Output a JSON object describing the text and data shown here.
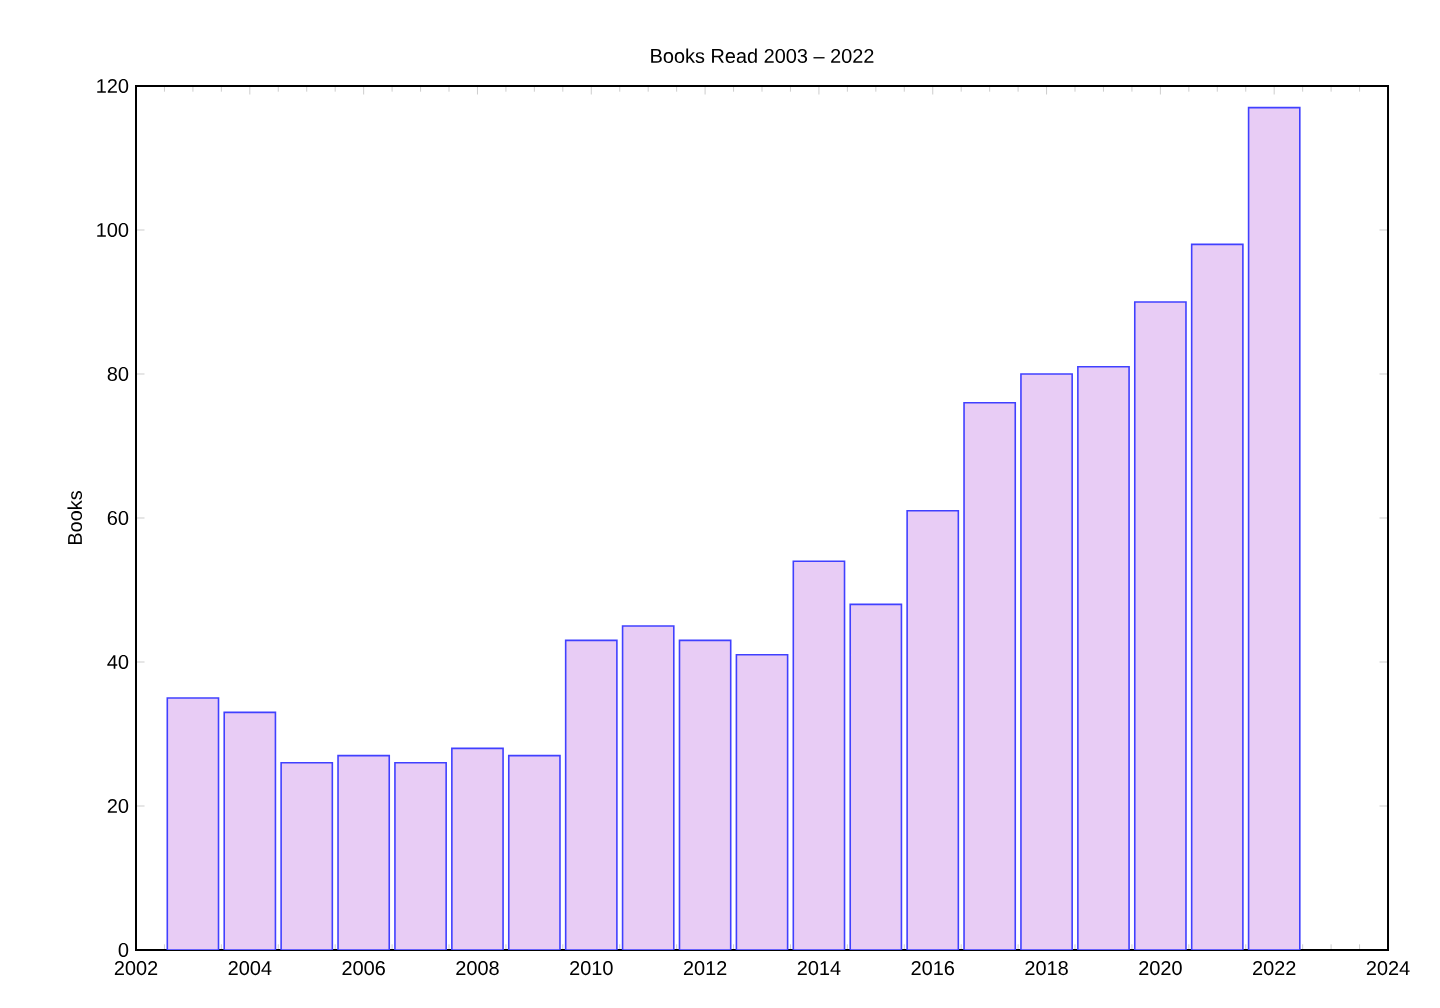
{
  "chart_data": {
    "type": "bar",
    "title": "Books Read 2003 – 2022",
    "ylabel": "Books",
    "x": [
      2003,
      2004,
      2005,
      2006,
      2007,
      2008,
      2009,
      2010,
      2011,
      2012,
      2013,
      2014,
      2015,
      2016,
      2017,
      2018,
      2019,
      2020,
      2021,
      2022
    ],
    "values": [
      35,
      33,
      26,
      27,
      26,
      28,
      27,
      43,
      45,
      43,
      41,
      54,
      48,
      61,
      76,
      80,
      81,
      90,
      98,
      117
    ],
    "color": "#e8ccf5",
    "xlim": [
      2002,
      2024
    ],
    "xticks": [
      2002,
      2004,
      2006,
      2008,
      2010,
      2012,
      2014,
      2016,
      2018,
      2020,
      2022,
      2024
    ],
    "ylim": [
      0,
      120
    ],
    "yticks": [
      0,
      20,
      40,
      60,
      80,
      100,
      120
    ]
  }
}
